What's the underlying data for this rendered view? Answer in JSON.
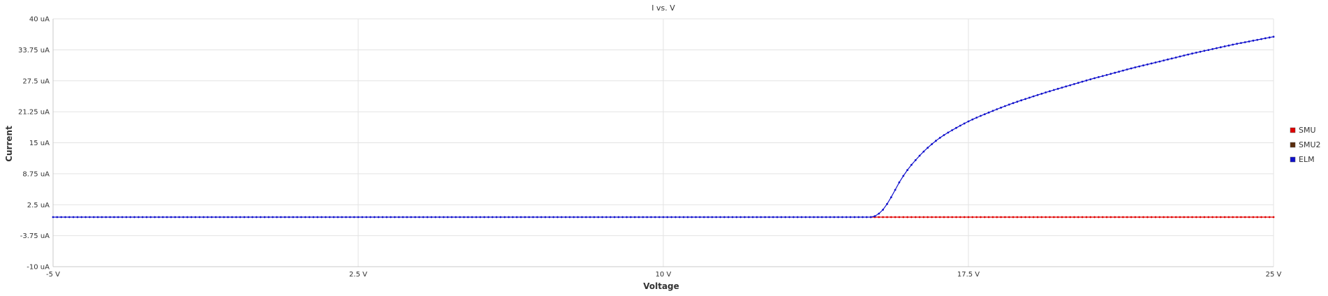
{
  "chart_data": {
    "type": "line",
    "title": "I vs. V",
    "xlabel": "Voltage",
    "ylabel": "Current",
    "xlim": [
      -5,
      25
    ],
    "ylim": [
      -10,
      40
    ],
    "x_ticks": [
      -5,
      2.5,
      10,
      17.5,
      25
    ],
    "x_tick_labels": [
      "-5 V",
      "2.5 V",
      "10 V",
      "17.5 V",
      "25 V"
    ],
    "x_grid": [
      -5,
      2.5,
      10,
      17.5,
      25
    ],
    "y_ticks": [
      40,
      33.75,
      27.5,
      21.25,
      15,
      8.75,
      2.5,
      -3.75,
      -10
    ],
    "y_tick_labels": [
      "40 uA",
      "33.75 uA",
      "27.5 uA",
      "21.25 uA",
      "15 uA",
      "8.75 uA",
      "2.5 uA",
      "-3.75 uA",
      "-10 uA"
    ],
    "grid": true,
    "legend_position": "right",
    "series": [
      {
        "name": "SMU",
        "color": "#e00000",
        "x": [
          -5,
          0,
          5,
          10,
          15,
          17.5,
          20,
          25
        ],
        "y": [
          0,
          0,
          0,
          0,
          0,
          0,
          0,
          0
        ]
      },
      {
        "name": "SMU2",
        "color": "#5a2d0c",
        "x": [],
        "y": []
      },
      {
        "name": "ELM",
        "color": "#1010cc",
        "x": [
          -5,
          0,
          5,
          10,
          15,
          15.2,
          15.4,
          15.6,
          15.8,
          16.0,
          16.2,
          16.5,
          16.8,
          17.2,
          17.6,
          18.0,
          18.5,
          19.0,
          19.5,
          20.0,
          20.5,
          21.0,
          21.5,
          22.0,
          22.5,
          23.0,
          23.5,
          24.0,
          24.5,
          25.0
        ],
        "y": [
          0,
          0,
          0,
          0,
          0,
          0.2,
          1.5,
          4.0,
          7.0,
          9.5,
          11.5,
          14.0,
          16.0,
          18.0,
          19.7,
          21.1,
          22.7,
          24.1,
          25.4,
          26.6,
          27.8,
          28.9,
          30.0,
          31.0,
          32.0,
          33.0,
          33.9,
          34.8,
          35.6,
          36.4
        ]
      }
    ]
  }
}
